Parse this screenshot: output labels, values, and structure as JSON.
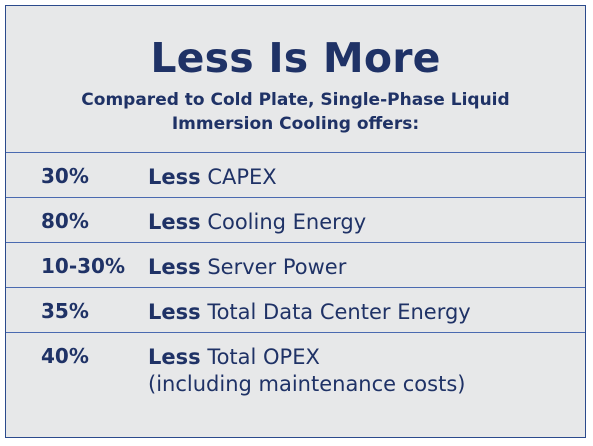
{
  "title": "Less Is More",
  "subtitle": {
    "line1": "Compared to Cold Plate, Single-Phase Liquid",
    "line2": "Immersion Cooling offers:"
  },
  "rows": [
    {
      "percent": "30%",
      "less": "Less",
      "label": "CAPEX"
    },
    {
      "percent": "80%",
      "less": "Less",
      "label": "Cooling Energy"
    },
    {
      "percent": "10-30%",
      "less": "Less",
      "label": "Server Power"
    },
    {
      "percent": "35%",
      "less": "Less",
      "label": "Total Data Center Energy"
    },
    {
      "percent": "40%",
      "less": "Less",
      "label": "Total OPEX",
      "note": "(including maintenance costs)"
    }
  ],
  "colors": {
    "background": "#e7e8e9",
    "text": "#1f3266",
    "divider": "#4a6ab0"
  }
}
